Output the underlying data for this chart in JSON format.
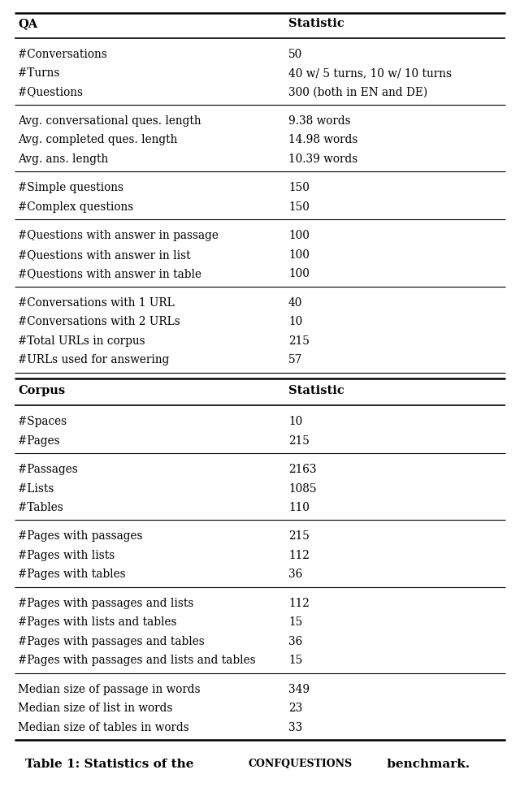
{
  "title_prefix": "Table 1: Statistics of the ",
  "title_smallcaps": "CONFQUESTIONS",
  "title_suffix": " benchmark.",
  "col1_header": "QA",
  "col2_header": "Statistic",
  "sections": [
    {
      "group": [
        [
          "#Conversations",
          "50"
        ],
        [
          "#Turns",
          "40 w/ 5 turns, 10 w/ 10 turns"
        ],
        [
          "#Questions",
          "300 (both in EN and DE)"
        ]
      ]
    },
    {
      "group": [
        [
          "Avg. conversational ques. length",
          "9.38 words"
        ],
        [
          "Avg. completed ques. length",
          "14.98 words"
        ],
        [
          "Avg. ans. length",
          "10.39 words"
        ]
      ]
    },
    {
      "group": [
        [
          "#Simple questions",
          "150"
        ],
        [
          "#Complex questions",
          "150"
        ]
      ]
    },
    {
      "group": [
        [
          "#Questions with answer in passage",
          "100"
        ],
        [
          "#Questions with answer in list",
          "100"
        ],
        [
          "#Questions with answer in table",
          "100"
        ]
      ]
    },
    {
      "group": [
        [
          "#Conversations with 1 URL",
          "40"
        ],
        [
          "#Conversations with 2 URLs",
          "10"
        ],
        [
          "#Total URLs in corpus",
          "215"
        ],
        [
          "#URLs used for answering",
          "57"
        ]
      ]
    },
    {
      "subheader": [
        "Corpus",
        "Statistic"
      ]
    },
    {
      "group": [
        [
          "#Spaces",
          "10"
        ],
        [
          "#Pages",
          "215"
        ]
      ]
    },
    {
      "group": [
        [
          "#Passages",
          "2163"
        ],
        [
          "#Lists",
          "1085"
        ],
        [
          "#Tables",
          "110"
        ]
      ]
    },
    {
      "group": [
        [
          "#Pages with passages",
          "215"
        ],
        [
          "#Pages with lists",
          "112"
        ],
        [
          "#Pages with tables",
          "36"
        ]
      ]
    },
    {
      "group": [
        [
          "#Pages with passages and lists",
          "112"
        ],
        [
          "#Pages with lists and tables",
          "15"
        ],
        [
          "#Pages with passages and tables",
          "36"
        ],
        [
          "#Pages with passages and lists and tables",
          "15"
        ]
      ]
    },
    {
      "group": [
        [
          "Median size of passage in words",
          "349"
        ],
        [
          "Median size of list in words",
          "23"
        ],
        [
          "Median size of tables in words",
          "33"
        ]
      ]
    }
  ],
  "bg_color": "#ffffff",
  "text_color": "#000000"
}
